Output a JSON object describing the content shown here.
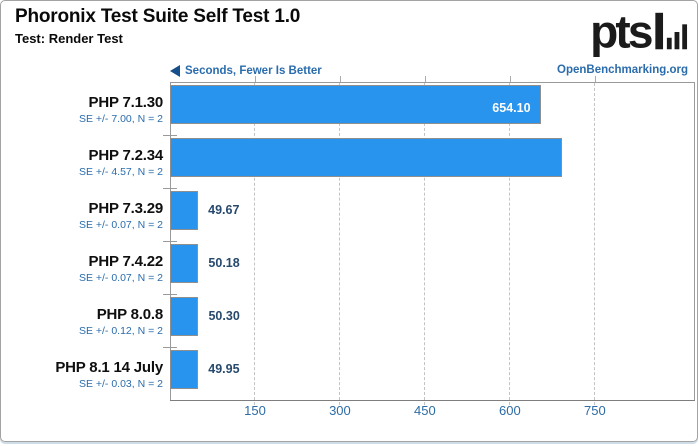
{
  "header": {
    "title": "Phoronix Test Suite Self Test 1.0",
    "subtitle": "Test: Render Test",
    "axis_note": "Seconds, Fewer Is Better",
    "logo_text": "pts",
    "watermark": "OpenBenchmarking.org"
  },
  "colors": {
    "bar_fill": "#2894ee",
    "bar_border": "#8f8f8f",
    "value_inside_text": "#ffffff",
    "value_outside_text": "#27496d",
    "blue_text": "#2a6cac",
    "tick_label_text": "#2d6ca5",
    "arrow": "#174f8c",
    "axis_line": "#9a9a9a",
    "grid_line": "#c3c3c3",
    "title_text": "#0a0a0a",
    "logo_black": "#1b1b1b"
  },
  "chart_data": {
    "type": "bar",
    "orientation": "horizontal",
    "title": "Phoronix Test Suite Self Test 1.0",
    "subtitle": "Test: Render Test",
    "xlabel": "Seconds, Fewer Is Better",
    "value_direction": "fewer-is-better",
    "categories": [
      "PHP 7.1.30",
      "PHP 7.2.34",
      "PHP 7.3.29",
      "PHP 7.4.22",
      "PHP 8.0.8",
      "PHP 8.1 14 July"
    ],
    "values": [
      654.1,
      692.74,
      49.67,
      50.18,
      50.3,
      49.95
    ],
    "value_labels": [
      "654.10",
      "692.74",
      "49.67",
      "50.18",
      "50.30",
      "49.95"
    ],
    "error_labels": [
      "SE +/- 7.00, N = 2",
      "SE +/- 4.57, N = 2",
      "SE +/- 0.07, N = 2",
      "SE +/- 0.07, N = 2",
      "SE +/- 0.12, N = 2",
      "SE +/- 0.03, N = 2"
    ],
    "xlim": [
      0,
      925
    ],
    "xticks": [
      150,
      300,
      450,
      600,
      750
    ],
    "grid": "vertical-dashed",
    "legend_position": "none"
  }
}
